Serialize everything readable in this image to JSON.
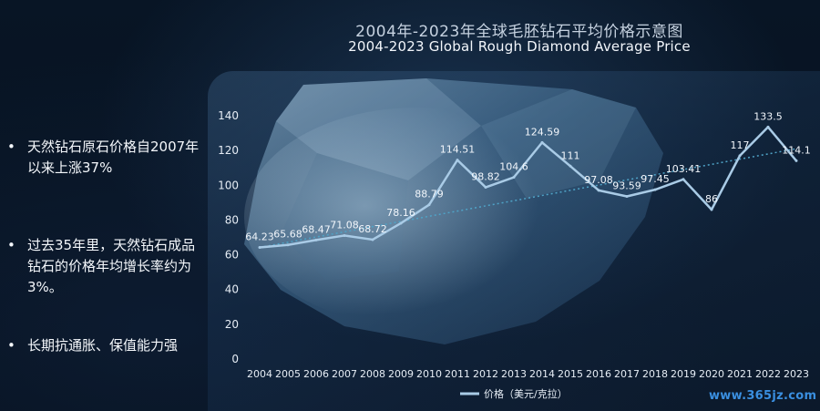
{
  "titles": {
    "cn": "2004年-2023年全球毛胚钻石平均价格示意图",
    "en": "2004-2023 Global Rough Diamond Average Price"
  },
  "bullets": [
    "天然钻石原石价格自2007年以来上涨37%",
    "过去35年里，天然钻石成品钻石的价格年均增长率约为3%。",
    "长期抗通胀、保值能力强"
  ],
  "watermark": "www.365jz.com",
  "colors": {
    "line": "#a9cbe6",
    "trend": "#4fa3c7",
    "axis_text": "#e6edf5"
  },
  "chart_data": {
    "type": "line",
    "categories": [
      "2004",
      "2005",
      "2006",
      "2007",
      "2008",
      "2009",
      "2010",
      "2011",
      "2012",
      "2013",
      "2014",
      "2015",
      "2016",
      "2017",
      "2018",
      "2019",
      "2020",
      "2021",
      "2022",
      "2023"
    ],
    "series": [
      {
        "name": "价格（美元/克拉）",
        "values": [
          64.23,
          65.68,
          68.47,
          71.08,
          68.72,
          78.16,
          88.79,
          114.51,
          98.82,
          104.6,
          124.59,
          111,
          97.08,
          93.59,
          97.45,
          103.41,
          86,
          117,
          133.5,
          114.1
        ],
        "labels": [
          "64.23",
          "65.68",
          "68.47",
          "71.08",
          "68.72",
          "78.16",
          "88.79",
          "114.51",
          "98.82",
          "104.6",
          "124.59",
          "111",
          "97.08",
          "93.59",
          "97.45",
          "103.41",
          "86",
          "117",
          "133.5",
          "114.1"
        ]
      }
    ],
    "ylim": [
      0,
      140
    ],
    "yticks": [
      0,
      20,
      40,
      60,
      80,
      100,
      120,
      140
    ],
    "trendline": {
      "style": "dotted",
      "from": [
        "2004",
        64.23
      ],
      "to": [
        "2023",
        121
      ]
    },
    "legend_position": "bottom"
  }
}
